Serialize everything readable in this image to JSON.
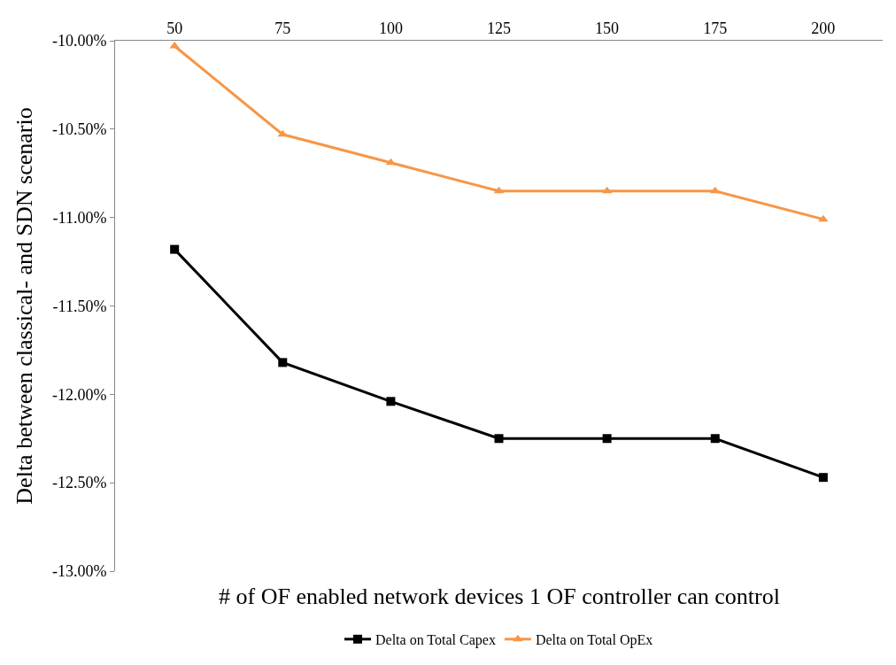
{
  "chart_data": {
    "type": "line",
    "xlabel": "# of OF enabled network devices 1 OF controller can control",
    "ylabel": "Delta between classical- and SDN scenario",
    "categories": [
      "50",
      "75",
      "100",
      "125",
      "150",
      "175",
      "200"
    ],
    "series": [
      {
        "name": "Delta on Total Capex",
        "color": "#000000",
        "marker": "square",
        "values": [
          -11.18,
          -11.82,
          -12.04,
          -12.25,
          -12.25,
          -12.25,
          -12.47
        ]
      },
      {
        "name": "Delta on Total OpEx",
        "color": "#f79646",
        "marker": "triangle",
        "values": [
          -10.03,
          -10.53,
          -10.69,
          -10.85,
          -10.85,
          -10.85,
          -11.01
        ]
      }
    ],
    "ylim": [
      -13,
      -10
    ],
    "yticks": [
      {
        "value": -10,
        "label": "-10.00%"
      },
      {
        "value": -10.5,
        "label": "-10.50%"
      },
      {
        "value": -11,
        "label": "-11.00%"
      },
      {
        "value": -11.5,
        "label": "-11.50%"
      },
      {
        "value": -12,
        "label": "-12.00%"
      },
      {
        "value": -12.5,
        "label": "-12.50%"
      },
      {
        "value": -13,
        "label": "-13.00%"
      }
    ],
    "legend": "bottom"
  }
}
